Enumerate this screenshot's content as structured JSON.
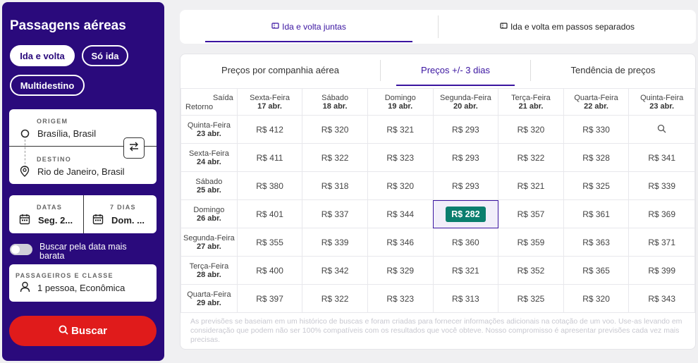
{
  "sidebar": {
    "title": "Passagens aéreas",
    "trip_types": [
      "Ida e volta",
      "Só ida",
      "Multidestino"
    ],
    "origin": {
      "label": "ORIGEM",
      "value": "Brasília, Brasil"
    },
    "destination": {
      "label": "DESTINO",
      "value": "Rio de Janeiro, Brasil"
    },
    "dates": {
      "label": "DATAS",
      "value": "Seg. 2..."
    },
    "duration": {
      "label": "7 DIAS",
      "value": "Dom. ..."
    },
    "cheapest_toggle": "Buscar pela data mais barata",
    "passengers": {
      "label": "PASSAGEIROS E CLASSE",
      "value": "1 pessoa, Econômica"
    },
    "search_button": "Buscar"
  },
  "top_tabs": [
    "Ida e volta juntas",
    "Ida e volta em passos separados"
  ],
  "sub_tabs": [
    "Preços por companhia aérea",
    "Preços +/- 3 dias",
    "Tendência de preços"
  ],
  "grid": {
    "corner_out": "Saída",
    "corner_ret": "Retorno",
    "columns": [
      {
        "day": "Sexta-Feira",
        "date": "17 abr."
      },
      {
        "day": "Sábado",
        "date": "18 abr."
      },
      {
        "day": "Domingo",
        "date": "19 abr."
      },
      {
        "day": "Segunda-Feira",
        "date": "20 abr."
      },
      {
        "day": "Terça-Feira",
        "date": "21 abr."
      },
      {
        "day": "Quarta-Feira",
        "date": "22 abr."
      },
      {
        "day": "Quinta-Feira",
        "date": "23 abr."
      }
    ],
    "rows": [
      {
        "day": "Quinta-Feira",
        "date": "23 abr.",
        "prices": [
          "R$ 412",
          "R$ 320",
          "R$ 321",
          "R$ 293",
          "R$ 320",
          "R$ 330",
          ""
        ]
      },
      {
        "day": "Sexta-Feira",
        "date": "24 abr.",
        "prices": [
          "R$ 411",
          "R$ 322",
          "R$ 323",
          "R$ 293",
          "R$ 322",
          "R$ 328",
          "R$ 341"
        ]
      },
      {
        "day": "Sábado",
        "date": "25 abr.",
        "prices": [
          "R$ 380",
          "R$ 318",
          "R$ 320",
          "R$ 293",
          "R$ 321",
          "R$ 325",
          "R$ 339"
        ]
      },
      {
        "day": "Domingo",
        "date": "26 abr.",
        "prices": [
          "R$ 401",
          "R$ 337",
          "R$ 344",
          "R$ 282",
          "R$ 357",
          "R$ 361",
          "R$ 369"
        ]
      },
      {
        "day": "Segunda-Feira",
        "date": "27 abr.",
        "prices": [
          "R$ 355",
          "R$ 339",
          "R$ 346",
          "R$ 360",
          "R$ 359",
          "R$ 363",
          "R$ 371"
        ]
      },
      {
        "day": "Terça-Feira",
        "date": "28 abr.",
        "prices": [
          "R$ 400",
          "R$ 342",
          "R$ 329",
          "R$ 321",
          "R$ 352",
          "R$ 365",
          "R$ 399"
        ]
      },
      {
        "day": "Quarta-Feira",
        "date": "29 abr.",
        "prices": [
          "R$ 397",
          "R$ 322",
          "R$ 323",
          "R$ 313",
          "R$ 325",
          "R$ 320",
          "R$ 343"
        ]
      }
    ]
  },
  "note": "As previsões se baseiam em um histórico de buscas e foram criadas para fornecer informações adicionais na cotação de um voo. Use-as levando em consideração que podem não ser 100% compatíveis com os resultados que você obteve. Nosso compromisso é apresentar previsões cada vez mais precisas.",
  "colors": {
    "brand": "#2a0a7c",
    "accent": "#3a14a0",
    "search": "#e01b1b",
    "cheapest": "#0a7e6e"
  }
}
